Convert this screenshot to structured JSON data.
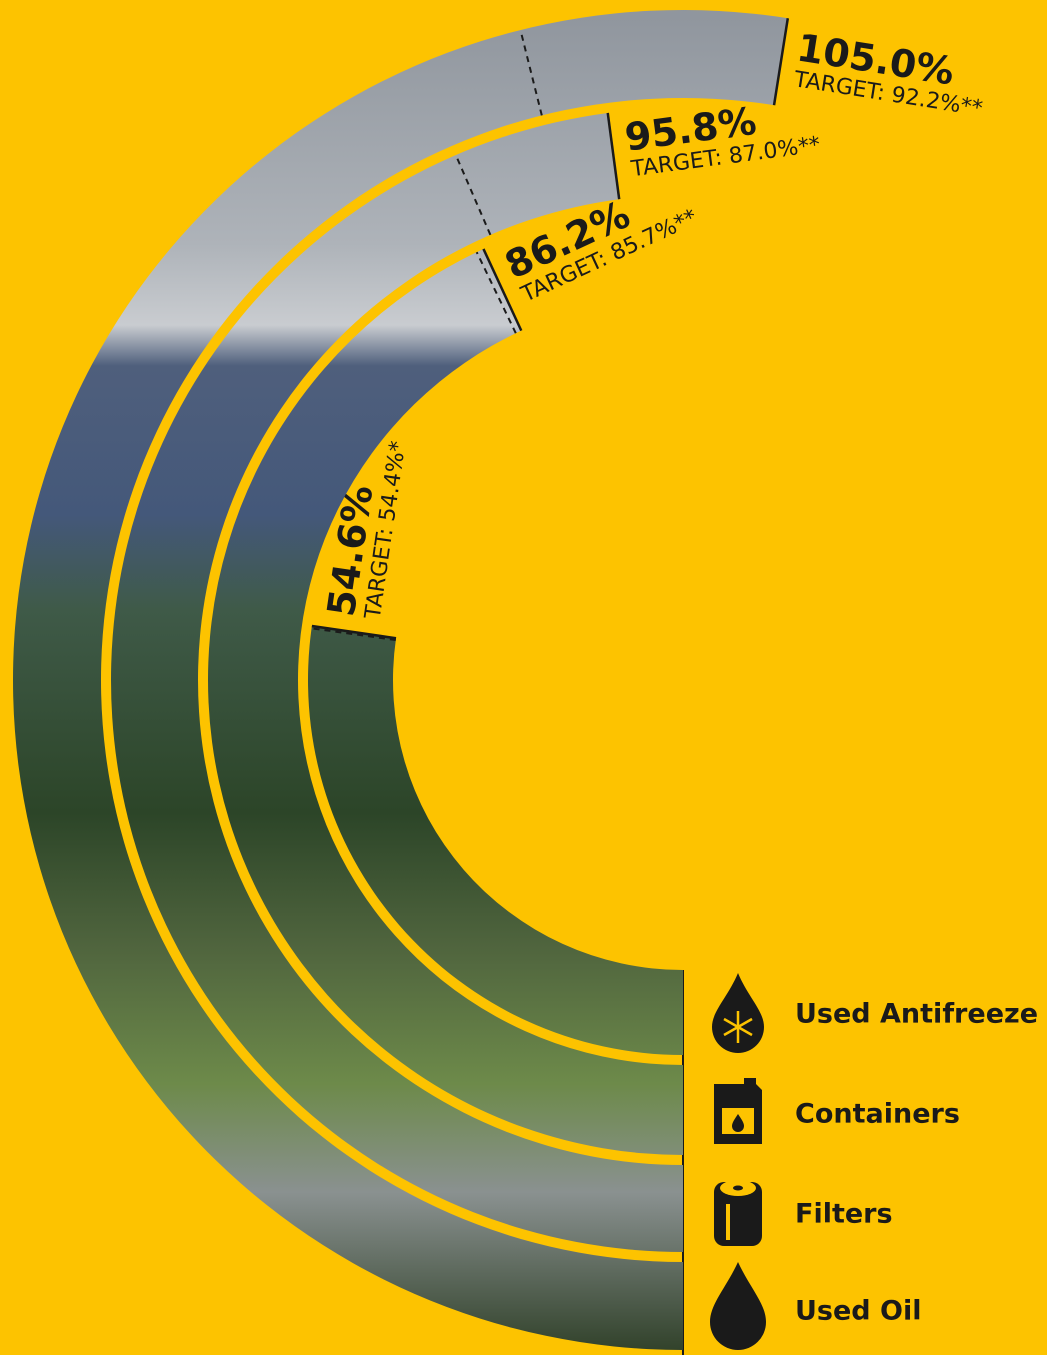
{
  "chart_data": {
    "type": "radial-bar",
    "categories": [
      "Used Antifreeze",
      "Containers",
      "Filters",
      "Used Oil"
    ],
    "values": [
      54.6,
      86.2,
      95.8,
      105.0
    ],
    "value_labels": [
      "54.6%",
      "86.2%",
      "95.8%",
      "105.0%"
    ],
    "targets": [
      54.4,
      85.7,
      87.0,
      92.2
    ],
    "target_labels": [
      "TARGET: 54.4%*",
      "TARGET: 85.7%**",
      "TARGET: 87.0%**",
      "TARGET: 92.2%**"
    ],
    "background": "#fdc300"
  }
}
